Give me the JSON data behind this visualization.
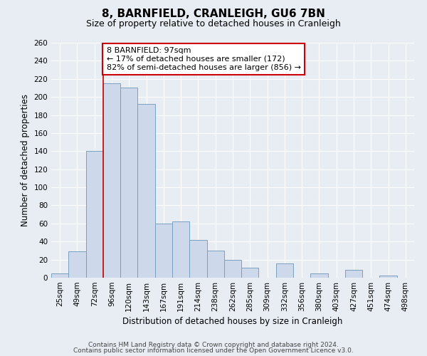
{
  "title": "8, BARNFIELD, CRANLEIGH, GU6 7BN",
  "subtitle": "Size of property relative to detached houses in Cranleigh",
  "xlabel": "Distribution of detached houses by size in Cranleigh",
  "ylabel": "Number of detached properties",
  "bin_labels": [
    "25sqm",
    "49sqm",
    "72sqm",
    "96sqm",
    "120sqm",
    "143sqm",
    "167sqm",
    "191sqm",
    "214sqm",
    "238sqm",
    "262sqm",
    "285sqm",
    "309sqm",
    "332sqm",
    "356sqm",
    "380sqm",
    "403sqm",
    "427sqm",
    "451sqm",
    "474sqm",
    "498sqm"
  ],
  "bar_heights": [
    5,
    29,
    140,
    215,
    210,
    192,
    60,
    62,
    42,
    30,
    20,
    11,
    0,
    16,
    0,
    5,
    0,
    9,
    0,
    2,
    0
  ],
  "bar_color": "#cdd9ea",
  "bar_edge_color": "#7a9fc0",
  "bar_linewidth": 0.7,
  "red_line_bin_index": 3,
  "annotation_text": "8 BARNFIELD: 97sqm\n← 17% of detached houses are smaller (172)\n82% of semi-detached houses are larger (856) →",
  "annotation_box_color": "#ffffff",
  "annotation_box_edge": "#cc0000",
  "ylim": [
    0,
    260
  ],
  "yticks": [
    0,
    20,
    40,
    60,
    80,
    100,
    120,
    140,
    160,
    180,
    200,
    220,
    240,
    260
  ],
  "bg_color": "#e8edf4",
  "grid_color": "#ffffff",
  "footer_line1": "Contains HM Land Registry data © Crown copyright and database right 2024.",
  "footer_line2": "Contains public sector information licensed under the Open Government Licence v3.0.",
  "title_fontsize": 11,
  "subtitle_fontsize": 9,
  "axis_label_fontsize": 8.5,
  "tick_fontsize": 7.5,
  "footer_fontsize": 6.5,
  "annotation_fontsize": 8
}
